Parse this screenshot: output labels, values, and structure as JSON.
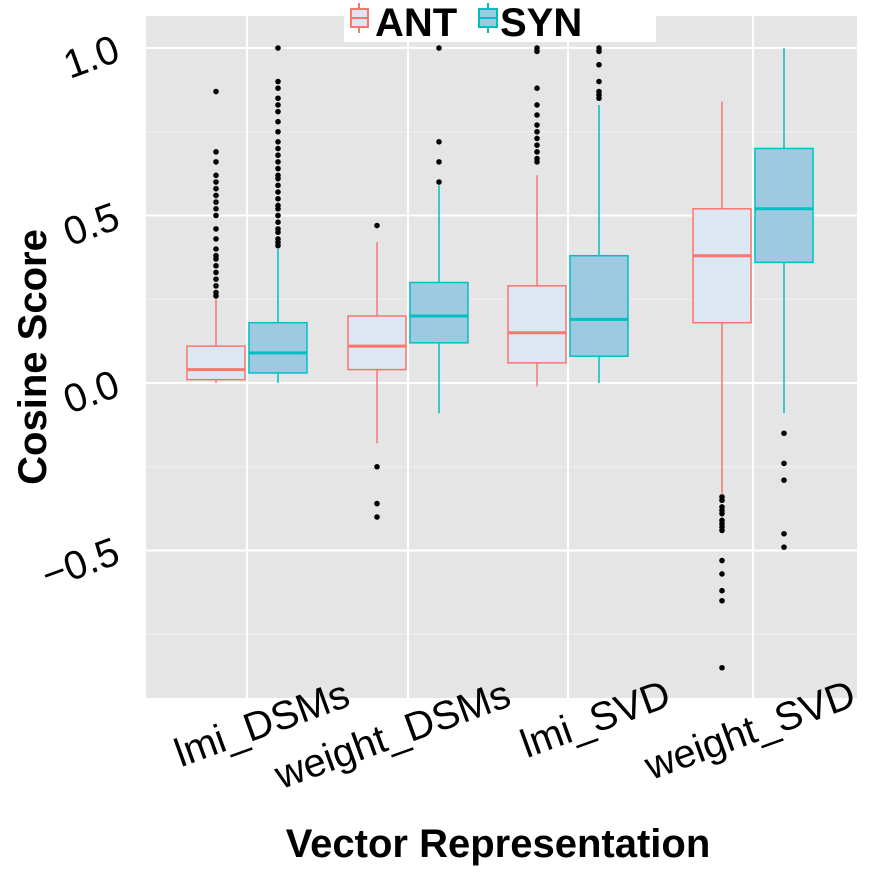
{
  "chart_data": {
    "type": "boxplot",
    "xlabel": "Vector Representation",
    "ylabel": "Cosine Score",
    "ylim": [
      -0.92,
      1.02
    ],
    "yticks": [
      -0.5,
      0.0,
      0.5,
      1.0
    ],
    "ytick_labels": [
      "−0.5",
      "0.0",
      "0.5",
      "1.0"
    ],
    "categories": [
      "lmi_DSMs",
      "weight_DSMs",
      "lmi_SVD",
      "weight_SVD"
    ],
    "grid": true,
    "legend_position": "top",
    "series": [
      {
        "name": "ANT",
        "color": "#f8766d",
        "fill": "#dde7f3",
        "boxes": [
          {
            "category": "lmi_DSMs",
            "whisker_low": 0.0,
            "q1": 0.01,
            "median": 0.04,
            "q3": 0.11,
            "whisker_high": 0.25,
            "outliers": [
              0.26,
              0.27,
              0.29,
              0.31,
              0.33,
              0.35,
              0.37,
              0.38,
              0.4,
              0.43,
              0.46,
              0.5,
              0.52,
              0.54,
              0.56,
              0.58,
              0.6,
              0.62,
              0.66,
              0.69,
              0.87
            ]
          },
          {
            "category": "weight_DSMs",
            "whisker_low": -0.18,
            "q1": 0.04,
            "median": 0.11,
            "q3": 0.2,
            "whisker_high": 0.42,
            "outliers": [
              0.47,
              -0.25,
              -0.36,
              -0.4
            ]
          },
          {
            "category": "lmi_SVD",
            "whisker_low": -0.01,
            "q1": 0.06,
            "median": 0.15,
            "q3": 0.29,
            "whisker_high": 0.62,
            "outliers": [
              0.66,
              0.67,
              0.69,
              0.71,
              0.73,
              0.75,
              0.77,
              0.8,
              0.83,
              0.88,
              0.99,
              1.0
            ]
          },
          {
            "category": "weight_SVD",
            "whisker_low": -0.33,
            "q1": 0.18,
            "median": 0.38,
            "q3": 0.52,
            "whisker_high": 0.84,
            "outliers": [
              -0.34,
              -0.35,
              -0.37,
              -0.38,
              -0.39,
              -0.41,
              -0.42,
              -0.43,
              -0.44,
              -0.53,
              -0.57,
              -0.62,
              -0.65,
              -0.85
            ]
          }
        ]
      },
      {
        "name": "SYN",
        "color": "#00bfc4",
        "fill": "#9ecae1",
        "boxes": [
          {
            "category": "lmi_DSMs",
            "whisker_low": 0.0,
            "q1": 0.03,
            "median": 0.09,
            "q3": 0.18,
            "whisker_high": 0.4,
            "outliers": [
              0.41,
              0.42,
              0.43,
              0.45,
              0.46,
              0.48,
              0.5,
              0.52,
              0.53,
              0.55,
              0.57,
              0.59,
              0.61,
              0.62,
              0.64,
              0.66,
              0.68,
              0.7,
              0.72,
              0.75,
              0.78,
              0.81,
              0.83,
              0.85,
              0.88,
              0.9,
              1.0
            ]
          },
          {
            "category": "weight_DSMs",
            "whisker_low": -0.09,
            "q1": 0.12,
            "median": 0.2,
            "q3": 0.3,
            "whisker_high": 0.59,
            "outliers": [
              0.6,
              0.66,
              0.72,
              1.0
            ]
          },
          {
            "category": "lmi_SVD",
            "whisker_low": 0.0,
            "q1": 0.08,
            "median": 0.19,
            "q3": 0.38,
            "whisker_high": 0.83,
            "outliers": [
              0.85,
              0.86,
              0.87,
              0.9,
              0.95,
              0.99,
              1.0
            ]
          },
          {
            "category": "weight_SVD",
            "whisker_low": -0.09,
            "q1": 0.36,
            "median": 0.52,
            "q3": 0.7,
            "whisker_high": 1.0,
            "outliers": [
              -0.15,
              -0.24,
              -0.29,
              -0.45,
              -0.49
            ]
          }
        ]
      }
    ]
  }
}
